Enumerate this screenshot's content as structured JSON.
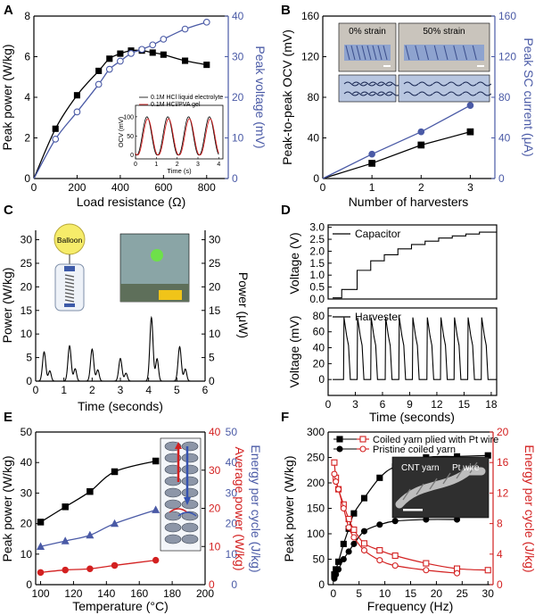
{
  "chart_data": [
    {
      "panel": "A",
      "type": "line",
      "x_ticks": [
        0,
        200,
        400,
        600,
        800
      ],
      "y_ticks": [
        0,
        2,
        4,
        6,
        8
      ],
      "y2_ticks": [
        0,
        10,
        20,
        30,
        40
      ],
      "xlabel": "Load resistance (Ω)",
      "ylabel": "Peak power (W/kg)",
      "y2label": "Peak voltage (mV)",
      "xlim": [
        0,
        900
      ],
      "ylim": [
        0,
        8
      ],
      "y2lim": [
        0,
        40
      ],
      "colors": {
        "left": "#000000",
        "right": "#4a5aa6"
      },
      "series": [
        {
          "axis": "left",
          "marker": "square-filled",
          "x": [
            0,
            100,
            200,
            300,
            350,
            400,
            450,
            500,
            550,
            600,
            700,
            800
          ],
          "y": [
            0,
            2.45,
            4.1,
            5.3,
            5.9,
            6.15,
            6.3,
            6.3,
            6.2,
            6.1,
            5.8,
            5.6
          ]
        },
        {
          "axis": "right",
          "marker": "circle-open",
          "x": [
            0,
            100,
            200,
            300,
            350,
            400,
            450,
            500,
            550,
            600,
            700,
            800
          ],
          "y": [
            0,
            9.7,
            16.4,
            23.2,
            26.9,
            28.9,
            30.8,
            31.8,
            32.9,
            34.3,
            36.8,
            38.5
          ]
        }
      ],
      "inset": {
        "xlabel": "Time (s)",
        "ylabel": "OCV (mV)",
        "x_ticks": [
          0,
          1,
          2,
          3,
          4
        ],
        "y_ticks": [
          0,
          50,
          100
        ],
        "xlim": [
          0,
          4.2
        ],
        "ylim": [
          -10,
          130
        ],
        "legend": [
          "0.1M HCl liquid electrolyte",
          "0.1M HCl/PVA gel"
        ]
      }
    },
    {
      "panel": "B",
      "type": "line",
      "x_ticks": [
        0,
        1,
        2,
        3
      ],
      "y_ticks": [
        0,
        40,
        80,
        120,
        160
      ],
      "y2_ticks": [
        0,
        40,
        80,
        120,
        160
      ],
      "xlabel": "Number of harvesters",
      "ylabel": "Peak-to-peak OCV (mV)",
      "y2label": "Peak SC current (μA)",
      "xlim": [
        0,
        3.5
      ],
      "ylim": [
        0,
        160
      ],
      "y2lim": [
        0,
        160
      ],
      "series": [
        {
          "axis": "left",
          "marker": "square-filled",
          "x": [
            0,
            1,
            2,
            3
          ],
          "y": [
            0,
            15,
            33,
            46
          ]
        },
        {
          "axis": "right",
          "marker": "circle-filled",
          "x": [
            0,
            1,
            2,
            3
          ],
          "y": [
            0,
            24,
            46,
            72
          ]
        }
      ],
      "photo_labels": [
        "0% strain",
        "50% strain"
      ]
    },
    {
      "panel": "C",
      "type": "line",
      "x_ticks": [
        0,
        1,
        2,
        3,
        4,
        5,
        6
      ],
      "y_ticks": [
        0,
        5,
        10,
        15,
        20,
        25,
        30
      ],
      "y2_ticks": [
        0,
        5,
        10,
        15,
        20,
        25,
        30
      ],
      "xlabel": "Time (seconds)",
      "ylabel": "Power (W/kg)",
      "y2label": "Power (μW)",
      "xlim": [
        0,
        6
      ],
      "ylim": [
        0,
        32
      ],
      "peaks": [
        {
          "t": 0.3,
          "h": 6.2
        },
        {
          "t": 1.2,
          "h": 7.5
        },
        {
          "t": 2.0,
          "h": 6.8
        },
        {
          "t": 3.0,
          "h": 4.8
        },
        {
          "t": 4.1,
          "h": 13.5
        },
        {
          "t": 5.1,
          "h": 7.3
        }
      ],
      "illustration_label": "Balloon"
    },
    {
      "panel": "D",
      "type": "line",
      "x_ticks": [
        0,
        3,
        6,
        9,
        12,
        15,
        18
      ],
      "xlabel": "Time (seconds)",
      "xlim": [
        0,
        18.6
      ],
      "top": {
        "ylabel": "Voltage (V)",
        "legend": "Capacitor",
        "y_ticks": [
          0.0,
          0.5,
          1.0,
          1.5,
          2.0,
          2.5,
          3.0
        ],
        "ylim": [
          0,
          3.1
        ],
        "step_times": [
          1.5,
          3.2,
          4.7,
          6.2,
          7.7,
          9.2,
          10.7,
          12.2,
          13.7,
          15.2,
          16.7
        ],
        "step_levels": [
          0.05,
          0.4,
          1.2,
          1.6,
          1.85,
          2.1,
          2.28,
          2.42,
          2.55,
          2.64,
          2.72,
          2.8
        ]
      },
      "bottom": {
        "ylabel": "Voltage (mV)",
        "legend": "Harvester",
        "y_ticks": [
          0,
          20,
          40,
          60,
          80
        ],
        "ylim": [
          -20,
          90
        ],
        "spike_times": [
          1.7,
          3.2,
          4.7,
          6.3,
          7.8,
          9.3,
          10.9,
          12.4,
          13.9,
          15.4,
          16.9
        ],
        "spike_height": 78
      }
    },
    {
      "panel": "E",
      "type": "line",
      "x_ticks": [
        100,
        120,
        140,
        160,
        180,
        200
      ],
      "y_ticks": [
        0,
        10,
        20,
        30,
        40,
        50
      ],
      "y2_ticks": [
        0,
        10,
        20,
        30,
        40
      ],
      "y3_ticks": [
        0,
        10,
        20,
        30,
        40,
        50
      ],
      "xlabel": "Temperature (°C)",
      "ylabel": "Peak power (W/kg)",
      "y2label": "Average power (W/kg)",
      "y3label": "Energy per cycle (J/kg)",
      "xlim": [
        97,
        200
      ],
      "ylim": [
        0,
        50
      ],
      "colors": {
        "peak": "#000000",
        "average": "#d32020",
        "energy": "#4a5aa6"
      },
      "series": [
        {
          "name": "Peak power",
          "marker": "square-filled",
          "x": [
            100,
            115,
            130,
            145,
            170
          ],
          "y": [
            20.5,
            25.5,
            30.5,
            37,
            40.5
          ]
        },
        {
          "name": "Average power",
          "marker": "circle-filled",
          "x": [
            100,
            115,
            130,
            145,
            170
          ],
          "y": [
            4,
            4.8,
            5.2,
            6.3,
            8
          ]
        },
        {
          "name": "Energy per cycle",
          "marker": "triangle-filled",
          "x": [
            100,
            115,
            130,
            145,
            170
          ],
          "y": [
            12.5,
            14.3,
            16.2,
            20,
            24.5
          ]
        }
      ]
    },
    {
      "panel": "F",
      "type": "line",
      "x_ticks": [
        0,
        5,
        10,
        15,
        20,
        25,
        30
      ],
      "y_ticks": [
        0,
        50,
        100,
        150,
        200,
        250,
        300
      ],
      "y2_ticks": [
        0,
        4,
        8,
        12,
        16,
        20
      ],
      "xlabel": "Frequency (Hz)",
      "ylabel": "Peak power (W/kg)",
      "y2label": "Energy per cycle (J/kg)",
      "xlim": [
        -1,
        31
      ],
      "ylim": [
        0,
        300
      ],
      "y2lim": [
        0,
        20
      ],
      "colors": {
        "left": "#000000",
        "right": "#d32020"
      },
      "legend": [
        "Coiled yarn plied with Pt wire",
        "Pristine coiled yarn"
      ],
      "series": [
        {
          "name": "Coiled yarn plied with Pt wire",
          "axis": "left",
          "marker": "square-filled",
          "x": [
            0.2,
            0.5,
            1,
            2,
            3,
            4,
            6,
            9,
            12,
            18,
            24,
            30
          ],
          "y": [
            20,
            30,
            45,
            80,
            110,
            140,
            170,
            210,
            232,
            250,
            252,
            254
          ]
        },
        {
          "name": "Pristine coiled yarn",
          "axis": "left",
          "marker": "circle-filled",
          "x": [
            0.2,
            0.5,
            1,
            2,
            3,
            4,
            6,
            9,
            12,
            18,
            24
          ],
          "y": [
            12,
            20,
            30,
            50,
            65,
            80,
            105,
            118,
            125,
            128,
            128
          ]
        },
        {
          "name": "Coiled yarn plied with Pt wire",
          "axis": "right",
          "marker": "square-open",
          "x": [
            0.2,
            0.5,
            1,
            2,
            3,
            4,
            6,
            9,
            12,
            18,
            24,
            30
          ],
          "y": [
            16,
            14,
            12.5,
            10.5,
            8.6,
            7.2,
            5.4,
            4.5,
            3.8,
            2.8,
            2.1,
            1.9
          ]
        },
        {
          "name": "Pristine coiled yarn",
          "axis": "right",
          "marker": "circle-open",
          "x": [
            0.2,
            0.5,
            1,
            2,
            3,
            4,
            6,
            9,
            12,
            18,
            24
          ],
          "y": [
            14.5,
            13.5,
            12.5,
            10,
            7.5,
            6.2,
            4.5,
            3.2,
            2.5,
            1.9,
            1.5
          ]
        }
      ],
      "inset_labels": [
        "CNT yarn",
        "Pt wire"
      ]
    }
  ]
}
